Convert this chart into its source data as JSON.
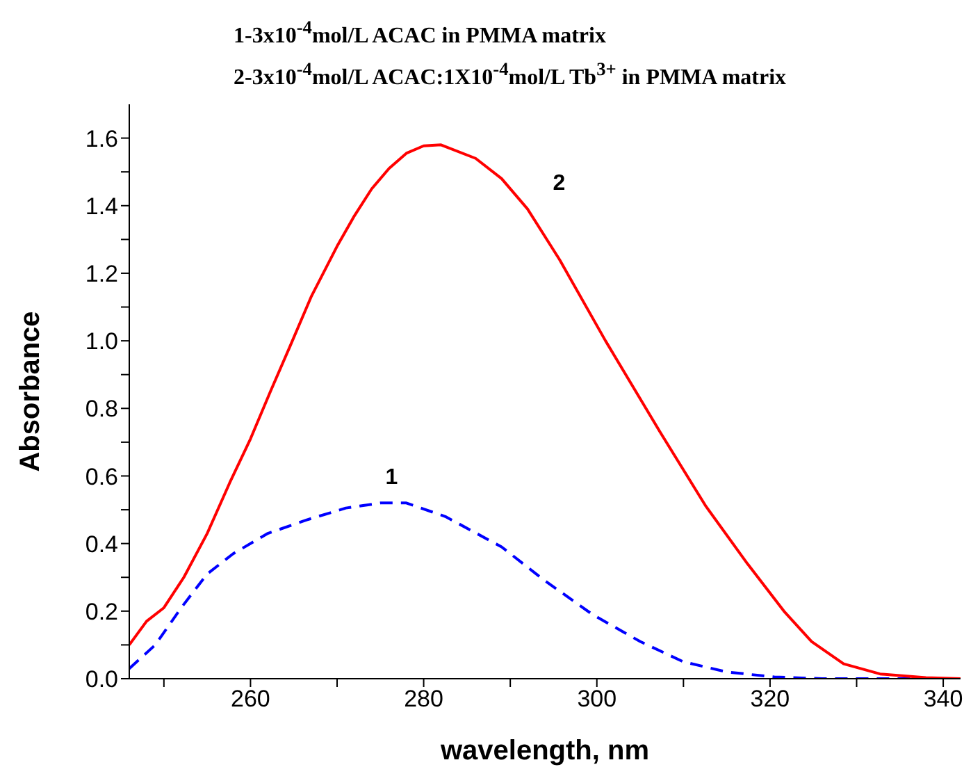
{
  "chart_data": {
    "type": "line",
    "title": "1-3x10$^{-4}$mol/L ACAC in PMMA matrix",
    "subtitle": "2-3x10$^{-4}$mol/L ACAC:1X10$^{-4}$mol/L Tb$^{3+}$ in PMMA matrix",
    "xlabel": "wavelength, nm",
    "ylabel": "Absorbance",
    "xlim": [
      246,
      342
    ],
    "ylim": [
      0,
      1.7
    ],
    "xticks": [
      {
        "value": 250,
        "label": null
      },
      260,
      {
        "value": 270,
        "label": null
      },
      280,
      {
        "value": 290,
        "label": null
      },
      300,
      {
        "value": 310,
        "label": null
      },
      320,
      {
        "value": 330,
        "label": null
      },
      340
    ],
    "yticks": [
      {
        "value": 0,
        "label": "0.0"
      },
      {
        "value": 0.1,
        "label": null
      },
      0.2,
      {
        "value": 0.3,
        "label": null
      },
      0.4,
      {
        "value": 0.5,
        "label": null
      },
      0.6,
      {
        "value": 0.7,
        "label": null
      },
      0.8,
      {
        "value": 0.9,
        "label": null
      },
      {
        "value": 1,
        "label": "1.0"
      },
      {
        "value": 1.1,
        "label": null
      },
      1.2,
      {
        "value": 1.3,
        "label": null
      },
      1.4,
      {
        "value": 1.5,
        "label": null
      },
      1.6
    ],
    "grid": false,
    "legend": false,
    "marker": "none",
    "series": [
      {
        "color": "#0000ff",
        "line_style": "dashed",
        "x": [
          246,
          249,
          252,
          255,
          258,
          262,
          266.5,
          271,
          275,
          278,
          282.5,
          289,
          294,
          299.5,
          305,
          310,
          315,
          320.5,
          326,
          342
        ],
        "values": [
          0.03,
          0.1,
          0.21,
          0.31,
          0.37,
          0.43,
          0.47,
          0.505,
          0.52,
          0.52,
          0.48,
          0.39,
          0.29,
          0.19,
          0.11,
          0.05,
          0.02,
          0.005,
          0,
          0
        ]
      },
      {
        "color": "#ff0000",
        "line_style": "solid",
        "x": [
          246,
          248,
          250,
          252.3,
          255,
          257.6,
          260,
          262.3,
          264.5,
          267,
          270,
          272,
          274,
          276,
          278,
          280,
          282,
          286,
          289,
          292,
          295.7,
          301,
          307.3,
          312.6,
          317.4,
          321.6,
          324.8,
          328.5,
          332.7,
          338,
          342
        ],
        "values": [
          0.1,
          0.17,
          0.21,
          0.3,
          0.43,
          0.58,
          0.71,
          0.85,
          0.98,
          1.13,
          1.28,
          1.37,
          1.45,
          1.51,
          1.555,
          1.577,
          1.58,
          1.54,
          1.48,
          1.39,
          1.24,
          1.0,
          0.73,
          0.51,
          0.34,
          0.2,
          0.11,
          0.044,
          0.014,
          0.003,
          0
        ]
      }
    ],
    "annotations": [
      "1",
      "2"
    ]
  }
}
